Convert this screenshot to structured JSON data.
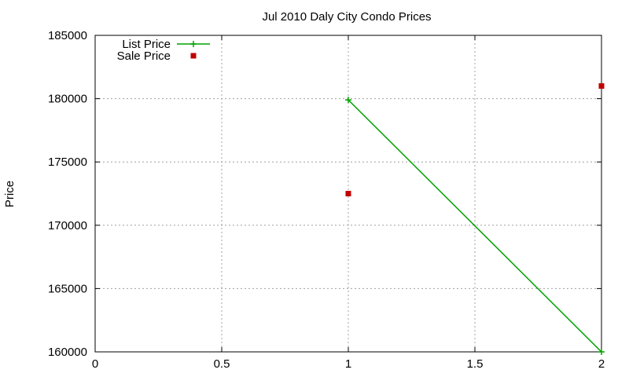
{
  "chart_data": {
    "type": "line",
    "title": "Jul 2010 Daly City Condo Prices",
    "xlabel": "",
    "ylabel": "Price",
    "xlim": [
      0,
      2
    ],
    "ylim": [
      160000,
      185000
    ],
    "xticks": [
      0,
      0.5,
      1,
      1.5,
      2
    ],
    "xtick_labels": [
      "0",
      "0.5",
      "1",
      "1.5",
      "2"
    ],
    "yticks": [
      160000,
      165000,
      170000,
      175000,
      180000,
      185000
    ],
    "ytick_labels": [
      "160000",
      "165000",
      "170000",
      "175000",
      "180000",
      "185000"
    ],
    "grid": true,
    "legend_position": "top-left",
    "series": [
      {
        "name": "List Price",
        "style": "lines+points",
        "marker": "plus",
        "color": "#00a000",
        "x": [
          1,
          2
        ],
        "y": [
          179900,
          160000
        ]
      },
      {
        "name": "Sale Price",
        "style": "points",
        "marker": "square",
        "color": "#c00000",
        "x": [
          1,
          2
        ],
        "y": [
          172500,
          181000
        ]
      }
    ]
  }
}
